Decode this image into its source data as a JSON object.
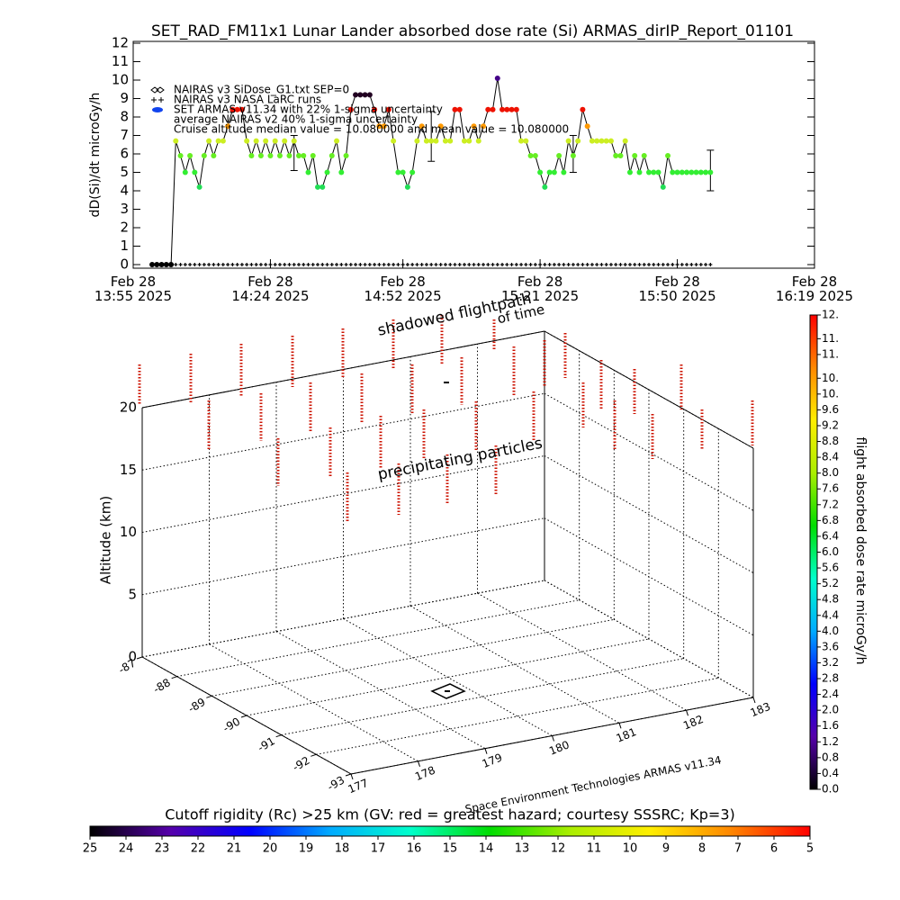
{
  "chart_data": [
    {
      "type": "line",
      "title": "SET_RAD_FM11x1  Lunar Lander absorbed dose rate (Si) ARMAS_dirIP_Report_01101",
      "ylabel": "dD(Si)/dt microGy/h",
      "ylim": [
        0,
        12
      ],
      "yticks": [
        0,
        1,
        2,
        3,
        4,
        5,
        6,
        7,
        8,
        9,
        10,
        11,
        12
      ],
      "xlim": [
        "2025-02-28T13:55",
        "2025-02-28T16:19"
      ],
      "xticks": [
        {
          "value": "2025-02-28T13:55",
          "label": "Feb 28\n13:55 2025"
        },
        {
          "value": "2025-02-28T14:24",
          "label": "Feb 28\n14:24 2025"
        },
        {
          "value": "2025-02-28T14:52",
          "label": "Feb 28\n14:52 2025"
        },
        {
          "value": "2025-02-28T15:21",
          "label": "Feb 28\n15:21 2025"
        },
        {
          "value": "2025-02-28T15:50",
          "label": "Feb 28\n15:50 2025"
        },
        {
          "value": "2025-02-28T16:19",
          "label": "Feb 28\n16:19 2025"
        }
      ],
      "legend_other": [
        "NAIRAS v3 SiDose_G1.txt SEP=0",
        "average NAIRAS v2 40% 1-sigma uncertainty"
      ],
      "annotation": "Cruise altitude median value = 10.080000 and mean value = 10.080000",
      "series": [
        {
          "name": "SET ARMAS v11.34 with 22% 1-sigma uncertainty",
          "color": "#1144ee",
          "color_by_value": {
            "0": "#000000",
            "4.2": "#22dd55",
            "5": "#33ee33",
            "5.9": "#66ee22",
            "6.7": "#ccee22",
            "7.5": "#ff9900",
            "8.4": "#ee1100",
            "9.2": "#220022",
            "10.1": "#440088"
          },
          "x": [
            "2025-02-28T13:59",
            "2025-02-28T14:00",
            "2025-02-28T14:01",
            "2025-02-28T14:02",
            "2025-02-28T14:03",
            "2025-02-28T14:04",
            "2025-02-28T14:05",
            "2025-02-28T14:06",
            "2025-02-28T14:07",
            "2025-02-28T14:08",
            "2025-02-28T14:09",
            "2025-02-28T14:10",
            "2025-02-28T14:11",
            "2025-02-28T14:12",
            "2025-02-28T14:13",
            "2025-02-28T14:14",
            "2025-02-28T14:15",
            "2025-02-28T14:16",
            "2025-02-28T14:17",
            "2025-02-28T14:18",
            "2025-02-28T14:19",
            "2025-02-28T14:20",
            "2025-02-28T14:21",
            "2025-02-28T14:22",
            "2025-02-28T14:23",
            "2025-02-28T14:24",
            "2025-02-28T14:25",
            "2025-02-28T14:26",
            "2025-02-28T14:27",
            "2025-02-28T14:28",
            "2025-02-28T14:29",
            "2025-02-28T14:30",
            "2025-02-28T14:31",
            "2025-02-28T14:32",
            "2025-02-28T14:33",
            "2025-02-28T14:34",
            "2025-02-28T14:35",
            "2025-02-28T14:36",
            "2025-02-28T14:37",
            "2025-02-28T14:38",
            "2025-02-28T14:39",
            "2025-02-28T14:40",
            "2025-02-28T14:41",
            "2025-02-28T14:42",
            "2025-02-28T14:43",
            "2025-02-28T14:44",
            "2025-02-28T14:45",
            "2025-02-28T14:46",
            "2025-02-28T14:47",
            "2025-02-28T14:48",
            "2025-02-28T14:49",
            "2025-02-28T14:50",
            "2025-02-28T14:51",
            "2025-02-28T14:52",
            "2025-02-28T14:53",
            "2025-02-28T14:54",
            "2025-02-28T14:55",
            "2025-02-28T14:56",
            "2025-02-28T14:57",
            "2025-02-28T14:58",
            "2025-02-28T14:59",
            "2025-02-28T15:00",
            "2025-02-28T15:01",
            "2025-02-28T15:02",
            "2025-02-28T15:03",
            "2025-02-28T15:04",
            "2025-02-28T15:05",
            "2025-02-28T15:06",
            "2025-02-28T15:07",
            "2025-02-28T15:08",
            "2025-02-28T15:09",
            "2025-02-28T15:10",
            "2025-02-28T15:11",
            "2025-02-28T15:12",
            "2025-02-28T15:13",
            "2025-02-28T15:14",
            "2025-02-28T15:15",
            "2025-02-28T15:16",
            "2025-02-28T15:17",
            "2025-02-28T15:18",
            "2025-02-28T15:19",
            "2025-02-28T15:20",
            "2025-02-28T15:21",
            "2025-02-28T15:22",
            "2025-02-28T15:23",
            "2025-02-28T15:24",
            "2025-02-28T15:25",
            "2025-02-28T15:26",
            "2025-02-28T15:27",
            "2025-02-28T15:28",
            "2025-02-28T15:29",
            "2025-02-28T15:30",
            "2025-02-28T15:31",
            "2025-02-28T15:32",
            "2025-02-28T15:33",
            "2025-02-28T15:34",
            "2025-02-28T15:35",
            "2025-02-28T15:36",
            "2025-02-28T15:37",
            "2025-02-28T15:38",
            "2025-02-28T15:39",
            "2025-02-28T15:40",
            "2025-02-28T15:41",
            "2025-02-28T15:42",
            "2025-02-28T15:43",
            "2025-02-28T15:44",
            "2025-02-28T15:45",
            "2025-02-28T15:46",
            "2025-02-28T15:47",
            "2025-02-28T15:48",
            "2025-02-28T15:49",
            "2025-02-28T15:50",
            "2025-02-28T15:51",
            "2025-02-28T15:52",
            "2025-02-28T15:53",
            "2025-02-28T15:54",
            "2025-02-28T15:55",
            "2025-02-28T15:56",
            "2025-02-28T15:57"
          ],
          "values": [
            0,
            0,
            0,
            0,
            0,
            6.7,
            5.9,
            5.0,
            5.9,
            5.0,
            4.2,
            5.9,
            6.7,
            5.9,
            6.7,
            6.7,
            7.5,
            8.4,
            8.4,
            8.4,
            6.7,
            5.9,
            6.7,
            5.9,
            6.7,
            5.9,
            6.7,
            5.9,
            6.7,
            5.9,
            6.7,
            5.9,
            5.9,
            5.0,
            5.9,
            4.2,
            4.2,
            5.0,
            5.9,
            6.7,
            5.0,
            5.9,
            8.4,
            9.2,
            9.2,
            9.2,
            9.2,
            8.4,
            7.5,
            7.5,
            8.4,
            6.7,
            5.0,
            5.0,
            4.2,
            5.0,
            6.7,
            7.5,
            6.7,
            6.7,
            6.7,
            7.5,
            6.7,
            6.7,
            8.4,
            8.4,
            6.7,
            6.7,
            7.5,
            6.7,
            7.5,
            8.4,
            8.4,
            10.1,
            8.4,
            8.4,
            8.4,
            8.4,
            6.7,
            6.7,
            5.9,
            5.9,
            5.0,
            4.2,
            5.0,
            5.0,
            5.9,
            5.0,
            6.7,
            5.9,
            6.7,
            8.4,
            7.5,
            6.7,
            6.7,
            6.7,
            6.7,
            6.7,
            5.9,
            5.9,
            6.7,
            5.0,
            5.9,
            5.0,
            5.9,
            5.0,
            5.0,
            5.0,
            4.2,
            5.9,
            5.0,
            5.0,
            5.0,
            5.0,
            5.0,
            5.0,
            5.0,
            5.0,
            5.0
          ],
          "error_bars": [
            {
              "x": "2025-02-28T14:29",
              "low": 5.1,
              "high": 7.0
            },
            {
              "x": "2025-02-28T14:58",
              "low": 5.6,
              "high": 8.3
            },
            {
              "x": "2025-02-28T15:28",
              "low": 5.0,
              "high": 7.0
            },
            {
              "x": "2025-02-28T15:57",
              "low": 4.0,
              "high": 6.2
            }
          ]
        },
        {
          "name": "NAIRAS v3 NASA LaRC runs",
          "color": "#000000",
          "values": [
            0,
            0,
            0,
            0,
            0,
            0,
            0,
            0,
            0,
            0,
            0,
            0,
            0,
            0,
            0,
            0,
            0,
            0,
            0,
            0,
            0,
            0,
            0,
            0,
            0,
            0,
            0,
            0,
            0,
            0,
            0,
            0,
            0,
            0,
            0,
            0,
            0,
            0,
            0,
            0,
            0,
            0,
            0,
            0,
            0,
            0,
            0,
            0,
            0,
            0,
            0,
            0,
            0,
            0,
            0,
            0,
            0,
            0,
            0,
            0,
            0,
            0,
            0,
            0,
            0,
            0,
            0,
            0,
            0,
            0,
            0,
            0,
            0,
            0,
            0,
            0,
            0,
            0,
            0,
            0,
            0,
            0,
            0,
            0,
            0,
            0,
            0,
            0,
            0,
            0,
            0,
            0,
            0,
            0,
            0,
            0,
            0,
            0,
            0,
            0,
            0,
            0,
            0,
            0,
            0,
            0,
            0,
            0,
            0,
            0,
            0,
            0,
            0,
            0,
            0,
            0,
            0,
            0,
            0
          ]
        }
      ]
    },
    {
      "type": "box3d",
      "zlabel": "Altitude (km)",
      "zlim": [
        0,
        20
      ],
      "zticks": [
        0,
        5,
        10,
        15,
        20
      ],
      "ylim": [
        -87,
        -93
      ],
      "yticks": [
        -87,
        -88,
        -89,
        -90,
        -91,
        -92,
        -93
      ],
      "xlim": [
        177,
        183
      ],
      "xticks": [
        177,
        178,
        179,
        180,
        181,
        182,
        183
      ],
      "annotations": [
        "shadowed flightpath",
        "of time",
        "precipitating particles",
        "Space Environment Technologies ARMAS v11.34"
      ],
      "colorbar": {
        "label": "flight absorbed dose rate microGy/h",
        "lim": [
          0,
          12
        ],
        "ticks": [
          {
            "value": 0,
            "label": "0.0"
          },
          0.4,
          0.8,
          1.2,
          1.6,
          {
            "value": 2,
            "label": "2.0"
          },
          2.4,
          2.8,
          3.2,
          3.6,
          {
            "value": 4,
            "label": "4.0"
          },
          4.4,
          4.8,
          5.2,
          5.6,
          {
            "value": 6,
            "label": "6.0"
          },
          6.4,
          6.8,
          7.2,
          7.6,
          {
            "value": 8,
            "label": "8.0"
          },
          8.4,
          8.8,
          9.2,
          9.6,
          {
            "value": 10,
            "label": "10."
          },
          {
            "value": 10.4,
            "label": "10."
          },
          {
            "value": 11,
            "label": "11."
          },
          {
            "value": 11.4,
            "label": "11."
          },
          {
            "value": 12,
            "label": "12."
          }
        ]
      },
      "colorbar2": {
        "title": "Cutoff rigidity (Rc) >25 km (GV: red = greatest hazard; courtesy SSSRC; Kp=3)",
        "lim": [
          25,
          5
        ],
        "ticks": [
          25,
          24,
          23,
          22,
          21,
          20,
          19,
          18,
          17,
          16,
          15,
          14,
          13,
          12,
          11,
          10,
          9,
          8,
          7,
          6,
          5
        ]
      }
    }
  ]
}
